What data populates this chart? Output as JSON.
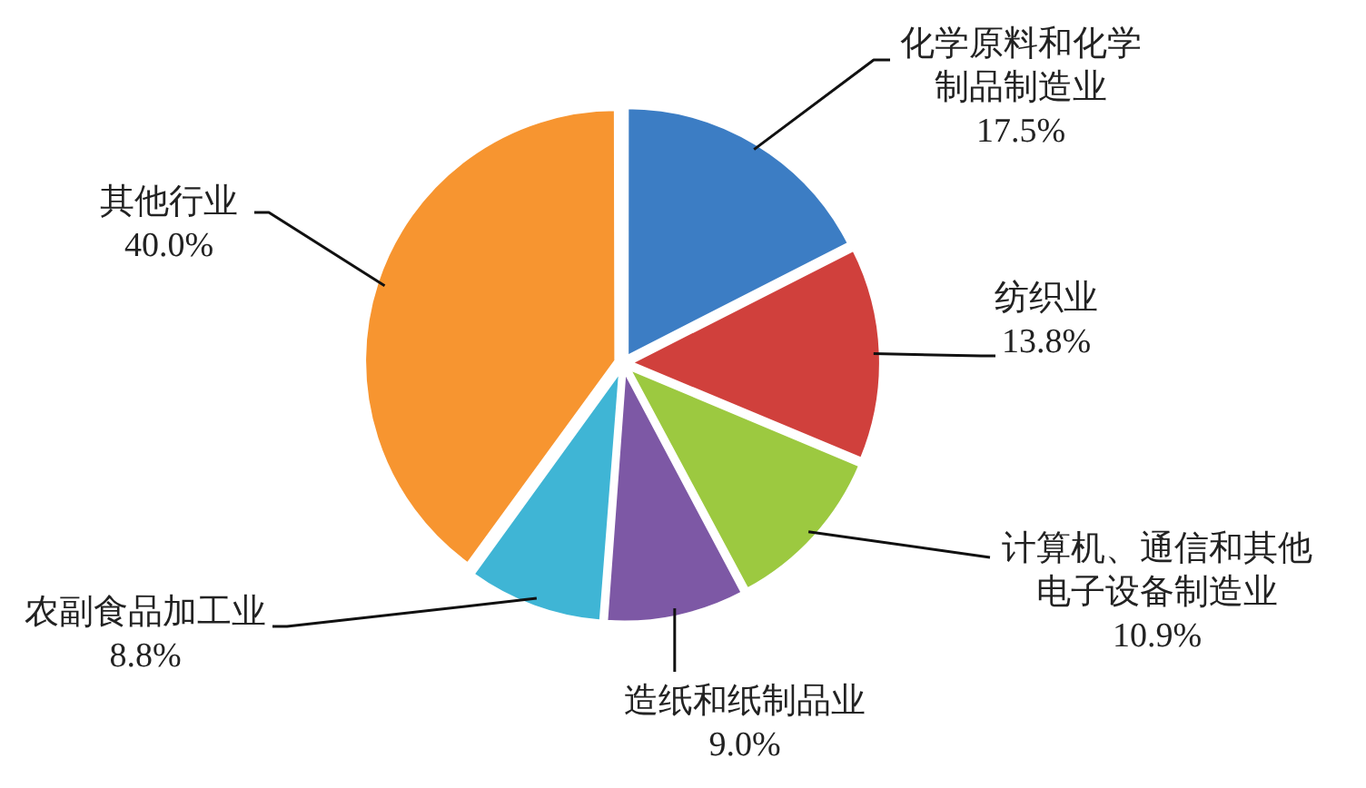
{
  "chart_data": {
    "type": "pie",
    "categories": [
      "化学原料和化学制品制造业",
      "纺织业",
      "计算机、通信和其他电子设备制造业",
      "造纸和纸制品业",
      "农副食品加工业",
      "其他行业"
    ],
    "values": [
      17.5,
      13.8,
      10.9,
      9.0,
      8.8,
      40.0
    ],
    "colors": [
      "#3c7dc4",
      "#d0403c",
      "#9cc940",
      "#7d58a5",
      "#3fb5d5",
      "#f79530"
    ],
    "value_labels": [
      "17.5%",
      "13.8%",
      "10.9%",
      "9.0%",
      "8.8%",
      "40.0%"
    ],
    "legend": false
  }
}
